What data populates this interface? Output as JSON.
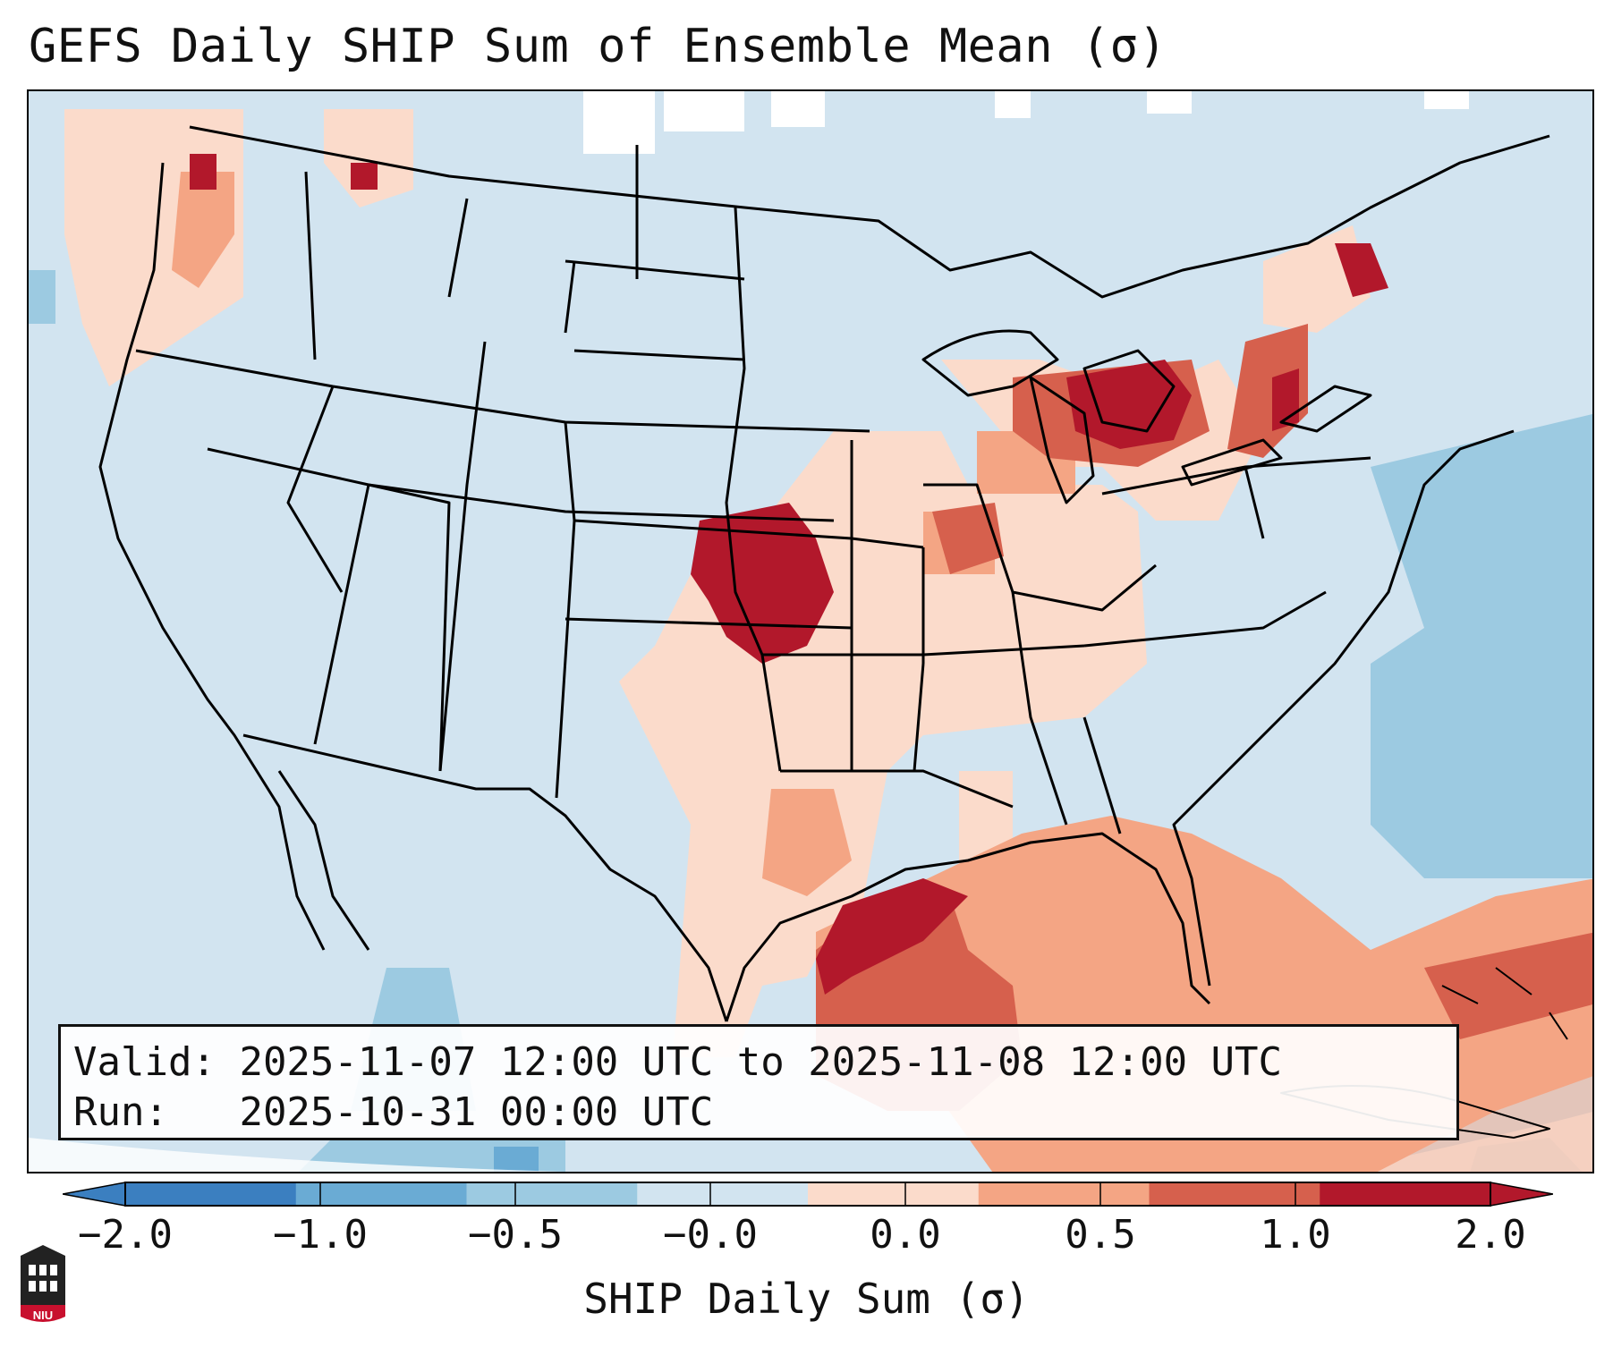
{
  "title": "GEFS Daily SHIP Sum of Ensemble Mean (σ)",
  "info": {
    "valid_label": "Valid:",
    "valid_value": "2025-11-07 12:00 UTC to 2025-11-08 12:00 UTC",
    "run_label": "Run:",
    "run_value": "2025-10-31 00:00 UTC"
  },
  "colorbar": {
    "label": "SHIP Daily Sum (σ)",
    "ticks": [
      "−2.0",
      "−1.0",
      "−0.5",
      "−0.0",
      "0.0",
      "0.5",
      "1.0",
      "2.0"
    ],
    "colors": [
      "#3b7fc0",
      "#6aabd4",
      "#9ccae1",
      "#d2e4f0",
      "#fbdbcb",
      "#f4a584",
      "#d6604d",
      "#b2182b"
    ]
  },
  "logo": {
    "text": "NIU",
    "icon": "niu-logo-icon"
  }
}
